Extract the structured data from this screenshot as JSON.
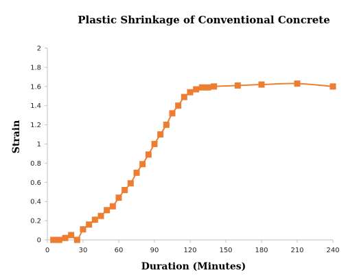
{
  "chart_data": {
    "type": "line",
    "title": "Plastic Shrinkage of Conventional Concrete",
    "xlabel": "Duration (Minutes)",
    "ylabel": "Strain",
    "xlim": [
      0,
      240
    ],
    "ylim": [
      0,
      2
    ],
    "x_ticks": [
      0,
      30,
      60,
      90,
      120,
      150,
      180,
      210,
      240
    ],
    "y_ticks": [
      0,
      0.2,
      0.4,
      0.6,
      0.8,
      1,
      1.2,
      1.4,
      1.6,
      1.8,
      2
    ],
    "grid": false,
    "series": [
      {
        "color": "#ED7D31",
        "marker": "square",
        "smooth": true,
        "x": [
          5,
          10,
          15,
          20,
          25,
          30,
          35,
          40,
          45,
          50,
          55,
          60,
          65,
          70,
          75,
          80,
          85,
          90,
          95,
          100,
          105,
          110,
          115,
          120,
          125,
          130,
          135,
          140,
          160,
          180,
          210,
          240
        ],
        "y": [
          0,
          0,
          0.02,
          0.05,
          0,
          0.11,
          0.16,
          0.21,
          0.25,
          0.31,
          0.35,
          0.44,
          0.52,
          0.59,
          0.7,
          0.79,
          0.89,
          1.0,
          1.1,
          1.2,
          1.32,
          1.4,
          1.49,
          1.54,
          1.57,
          1.59,
          1.59,
          1.6,
          1.61,
          1.62,
          1.63,
          1.6
        ]
      }
    ]
  }
}
